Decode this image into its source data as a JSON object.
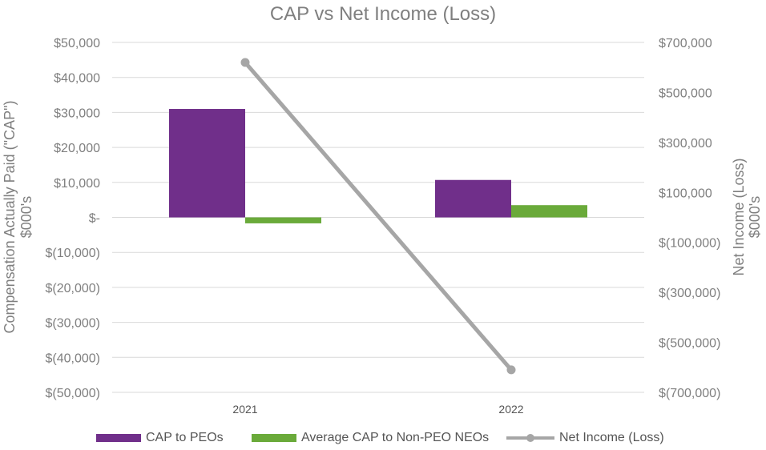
{
  "chart_data": {
    "type": "bar",
    "title": "CAP vs Net Income (Loss)",
    "categories": [
      "2021",
      "2022"
    ],
    "y_left": {
      "label_line1": "Compensation Actually Paid (\"CAP\")",
      "label_line2": "$000's",
      "range": [
        -50000,
        50000
      ],
      "ticks": [
        50000,
        40000,
        30000,
        20000,
        10000,
        0,
        -10000,
        -20000,
        -30000,
        -40000,
        -50000
      ],
      "tick_labels": [
        "$50,000",
        "$40,000",
        "$30,000",
        "$20,000",
        "$10,000",
        "$-",
        "$(10,000)",
        "$(20,000)",
        "$(30,000)",
        "$(40,000)",
        "$(50,000)"
      ]
    },
    "y_right": {
      "label_line1": "Net Income (Loss)",
      "label_line2": "$000's",
      "range": [
        -700000,
        700000
      ],
      "ticks": [
        700000,
        500000,
        300000,
        100000,
        -100000,
        -300000,
        -500000,
        -700000
      ],
      "tick_labels": [
        "$700,000",
        "$500,000",
        "$300,000",
        "$100,000",
        "$(100,000)",
        "$(300,000)",
        "$(500,000)",
        "$(700,000)"
      ]
    },
    "grid": true,
    "legend_position": "bottom",
    "series": [
      {
        "name": "CAP to PEOs",
        "type": "bar",
        "axis": "left",
        "color": "#702f8a",
        "values": [
          31000,
          10700
        ]
      },
      {
        "name": "Average CAP to Non-PEO NEOs",
        "type": "bar",
        "axis": "left",
        "color": "#6aaa3a",
        "values": [
          -1700,
          3500
        ]
      },
      {
        "name": "Net Income (Loss)",
        "type": "line",
        "axis": "right",
        "color": "#a6a6a6",
        "values": [
          620000,
          -610000
        ]
      }
    ]
  }
}
